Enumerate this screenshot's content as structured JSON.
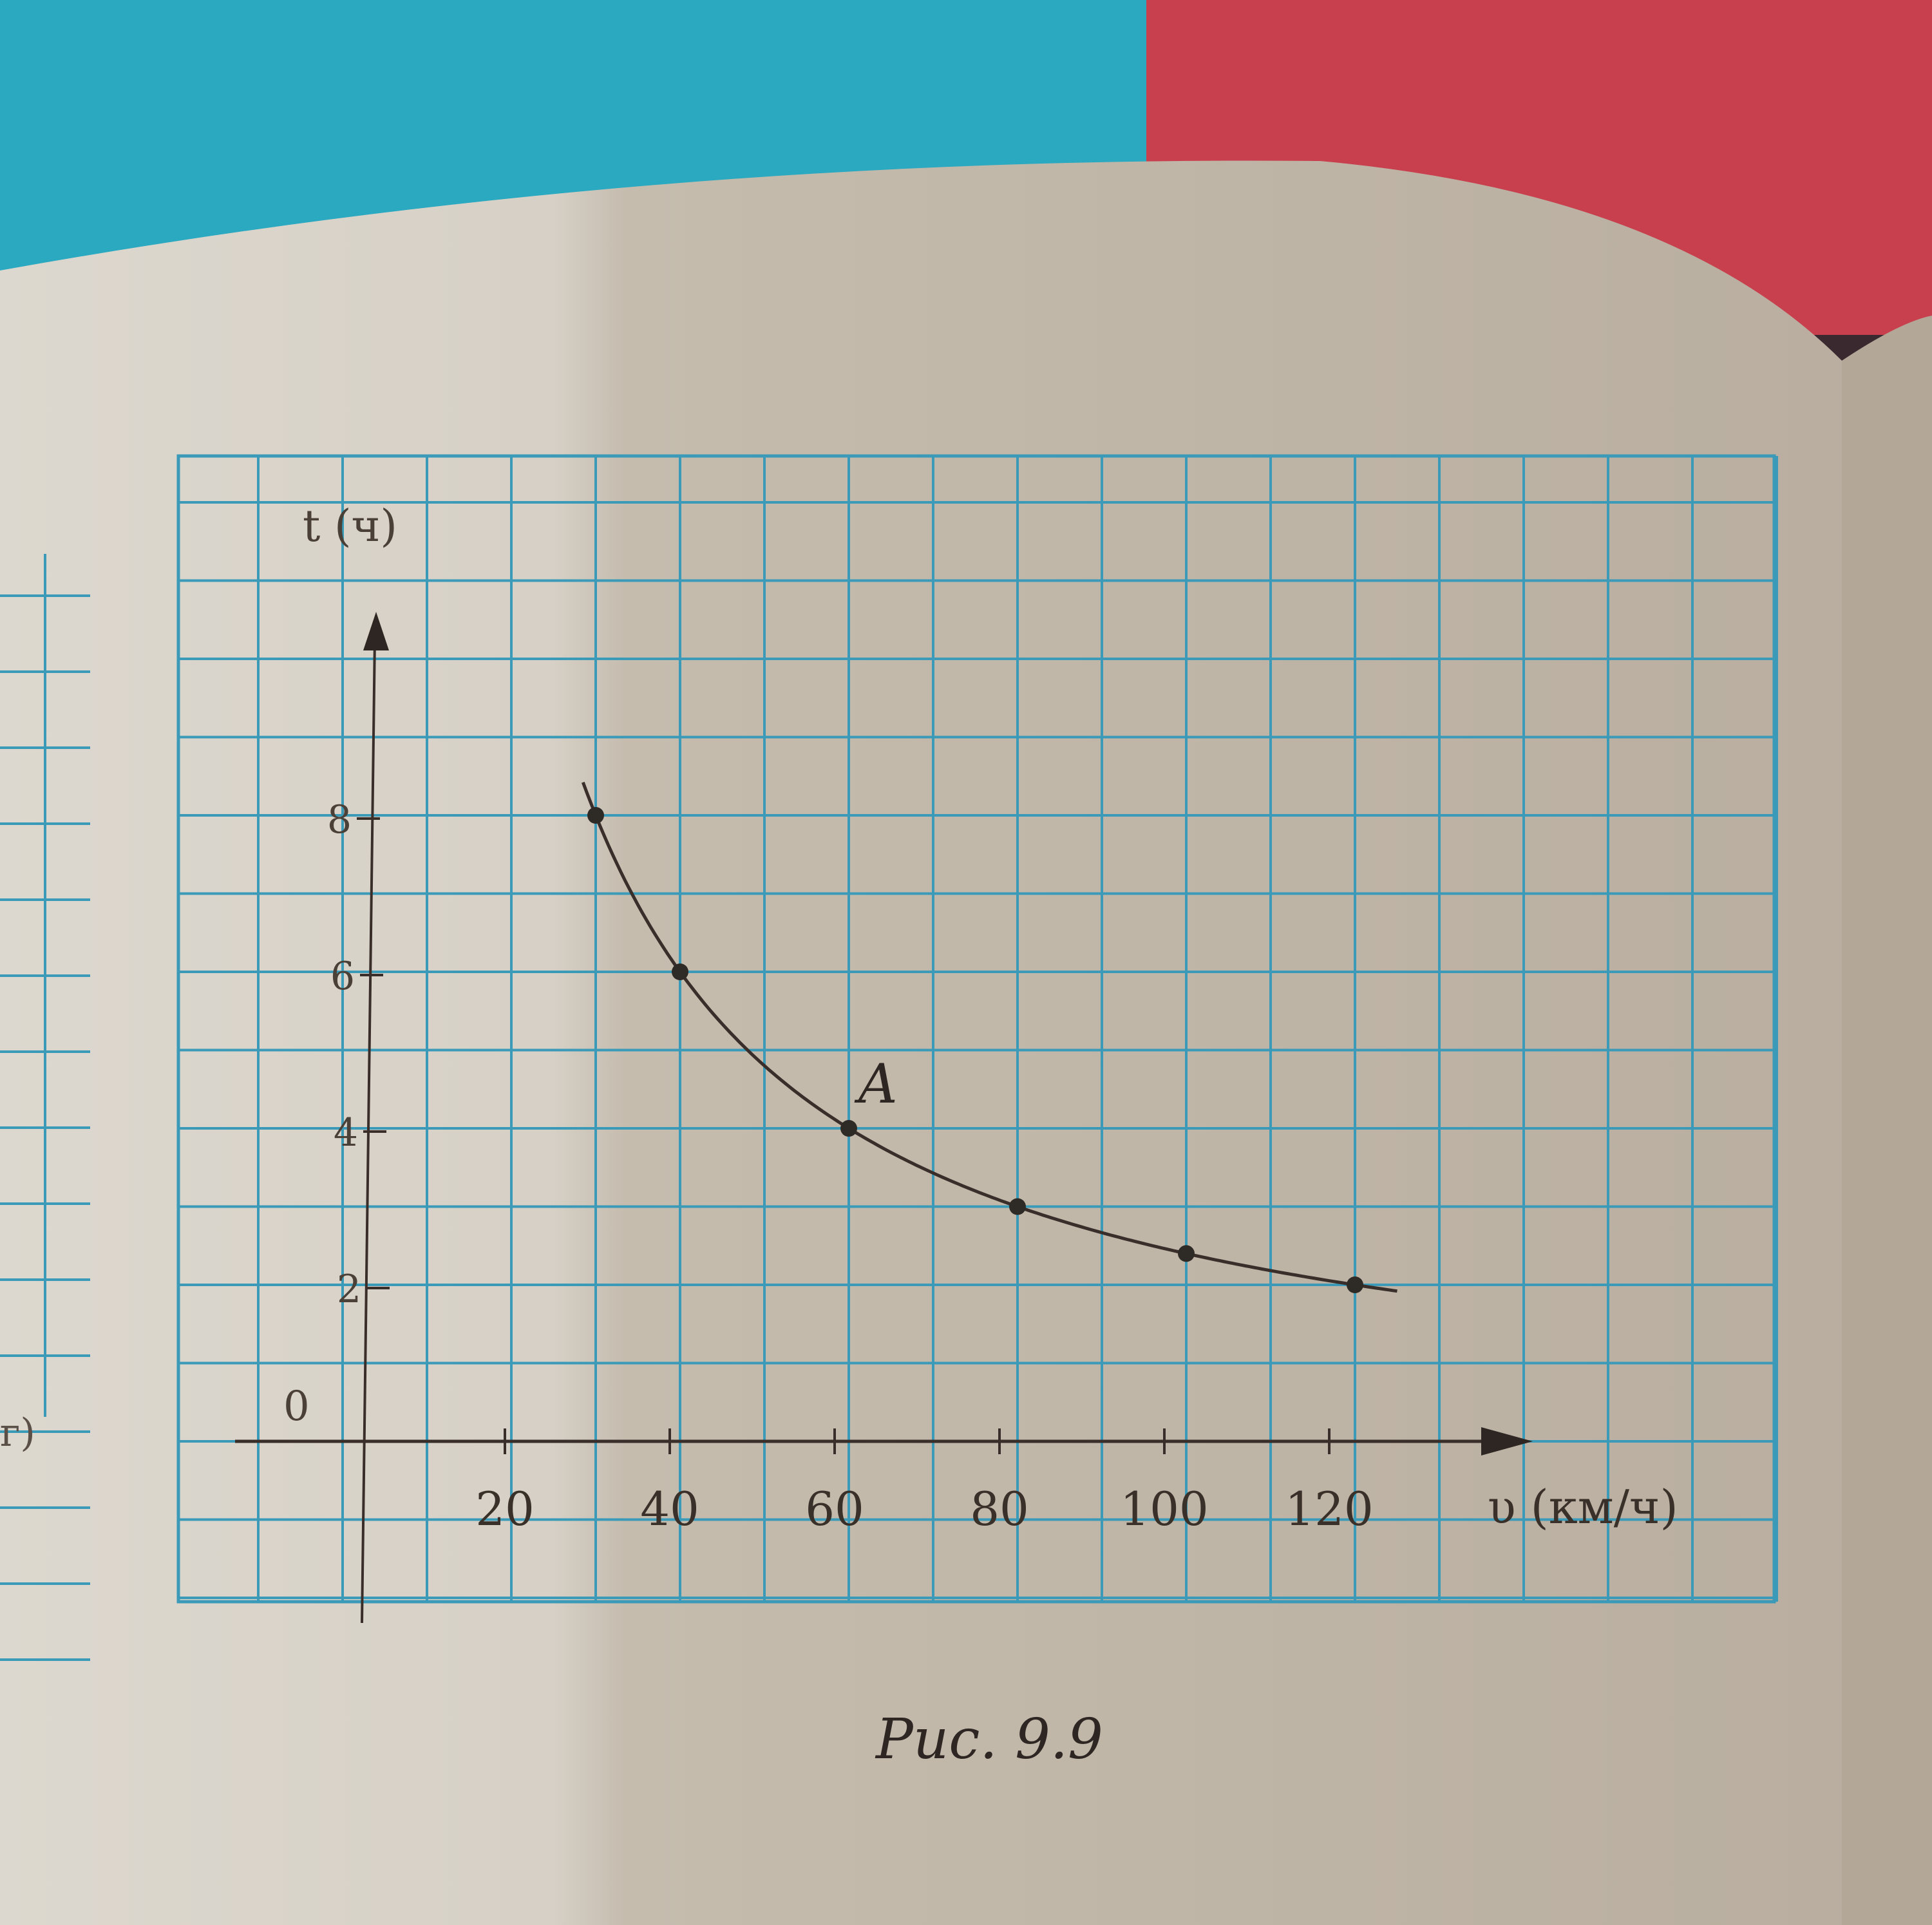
{
  "figure": {
    "caption": "Рис. 9.9",
    "point_label": "A",
    "side_fragment": "г)"
  },
  "chart_data": {
    "type": "line",
    "title": "",
    "xlabel": "υ (км/ч)",
    "ylabel": "t (ч)",
    "x_ticks": [
      20,
      40,
      60,
      80,
      100,
      120
    ],
    "y_ticks": [
      2,
      4,
      6,
      8
    ],
    "origin_label": "0",
    "xlim": [
      0,
      140
    ],
    "ylim": [
      0,
      10
    ],
    "grid": true,
    "curve": {
      "function": "t = 240 / v",
      "x_range": [
        28.5,
        125
      ]
    },
    "points": [
      {
        "x": 30,
        "y": 8
      },
      {
        "x": 40,
        "y": 6
      },
      {
        "x": 60,
        "y": 4,
        "label": "A"
      },
      {
        "x": 80,
        "y": 3
      },
      {
        "x": 100,
        "y": 2.4
      },
      {
        "x": 120,
        "y": 2
      }
    ],
    "colors": {
      "grid": "#3a9ab8",
      "curve": "#3a2e2a",
      "paper": "#d9d3c8"
    }
  }
}
